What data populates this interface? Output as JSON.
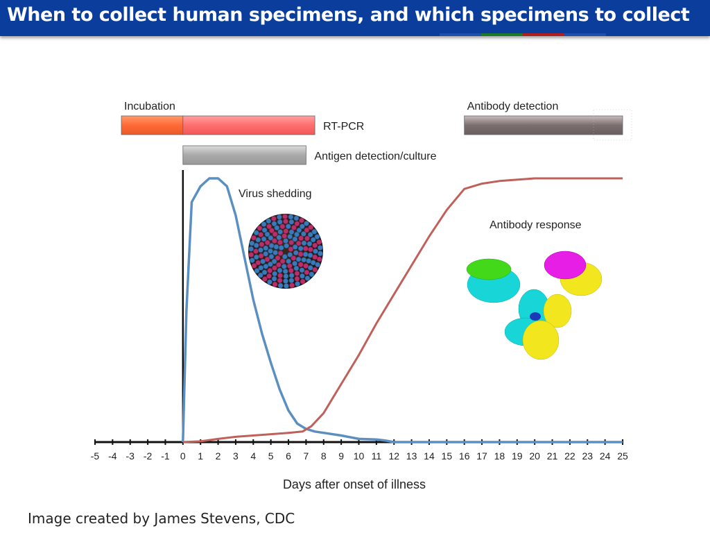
{
  "header": {
    "title": "When to collect human specimens, and which specimens to collect",
    "background": "#0a3d9c"
  },
  "footer": {
    "credit": "Image created by James Stevens, CDC"
  },
  "chart_data": {
    "type": "line",
    "title": "",
    "xlabel": "Days after onset of illness",
    "ylabel": "",
    "xlim": [
      -5,
      25
    ],
    "xticks": [
      -5,
      -4,
      -3,
      -2,
      -1,
      0,
      1,
      2,
      3,
      4,
      5,
      6,
      7,
      8,
      9,
      10,
      11,
      12,
      13,
      14,
      15,
      16,
      17,
      18,
      19,
      20,
      21,
      22,
      23,
      24,
      25
    ],
    "grid": false,
    "series": [
      {
        "name": "Virus shedding",
        "color": "#5b8fc2",
        "points": [
          [
            0,
            0
          ],
          [
            0.2,
            0.5
          ],
          [
            0.5,
            0.91
          ],
          [
            1,
            0.97
          ],
          [
            1.5,
            1.0
          ],
          [
            2,
            1.0
          ],
          [
            2.5,
            0.97
          ],
          [
            3,
            0.86
          ],
          [
            3.5,
            0.7
          ],
          [
            4,
            0.54
          ],
          [
            4.5,
            0.41
          ],
          [
            5,
            0.3
          ],
          [
            5.5,
            0.2
          ],
          [
            6,
            0.12
          ],
          [
            6.5,
            0.07
          ],
          [
            7,
            0.05
          ],
          [
            7.5,
            0.04
          ],
          [
            8,
            0.035
          ],
          [
            9,
            0.025
          ],
          [
            10,
            0.012
          ],
          [
            11,
            0.01
          ],
          [
            11.5,
            0.006
          ],
          [
            12,
            0
          ],
          [
            25,
            0
          ]
        ]
      },
      {
        "name": "Antibody response",
        "color": "#c0605a",
        "points": [
          [
            0,
            0
          ],
          [
            1,
            0.003
          ],
          [
            2,
            0.012
          ],
          [
            3,
            0.02
          ],
          [
            4,
            0.025
          ],
          [
            5,
            0.03
          ],
          [
            6,
            0.035
          ],
          [
            6.8,
            0.04
          ],
          [
            7.3,
            0.06
          ],
          [
            8,
            0.11
          ],
          [
            9,
            0.22
          ],
          [
            10,
            0.33
          ],
          [
            11,
            0.45
          ],
          [
            12,
            0.56
          ],
          [
            13,
            0.67
          ],
          [
            14,
            0.78
          ],
          [
            15,
            0.88
          ],
          [
            16,
            0.96
          ],
          [
            17,
            0.98
          ],
          [
            18,
            0.99
          ],
          [
            19,
            0.995
          ],
          [
            20,
            1.0
          ],
          [
            22,
            1.0
          ],
          [
            25,
            1.0
          ]
        ]
      }
    ],
    "bars": [
      {
        "label": "Incubation",
        "start": -3.5,
        "end": 0,
        "color": "#ff6a36",
        "row": 1,
        "label_side": "top"
      },
      {
        "label": "RT-PCR",
        "start": 0,
        "end": 7.5,
        "color": "#ff6e6e",
        "row": 1,
        "label_side": "right"
      },
      {
        "label": "Antigen detection/culture",
        "start": 0,
        "end": 7,
        "color": "#a9a9a9",
        "row": 2,
        "label_side": "right"
      },
      {
        "label": "Antibody detection",
        "start": 16,
        "end": 25,
        "color": "#7a6e6e",
        "row": 1,
        "label_side": "top"
      }
    ],
    "annotations": [
      "Virus shedding",
      "Antibody response"
    ]
  }
}
